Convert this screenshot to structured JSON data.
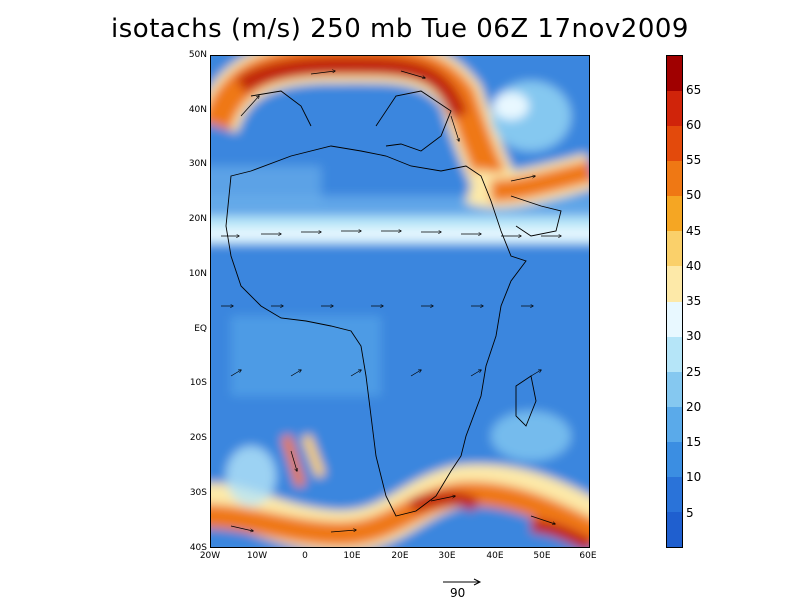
{
  "title": "isotachs (m/s) 250 mb Tue 06Z 17nov2009",
  "lat_labels": [
    "50N",
    "40N",
    "30N",
    "20N",
    "10N",
    "EQ",
    "10S",
    "20S",
    "30S",
    "40S"
  ],
  "lon_labels": [
    "20W",
    "10W",
    "0",
    "10E",
    "20E",
    "30E",
    "40E",
    "50E",
    "60E"
  ],
  "colorbar": {
    "labels": [
      "65",
      "60",
      "55",
      "50",
      "45",
      "40",
      "35",
      "30",
      "25",
      "20",
      "15",
      "10",
      "5"
    ],
    "colors": [
      "#a00000",
      "#d0240a",
      "#e34a0c",
      "#ef7814",
      "#f5a623",
      "#fad06a",
      "#fde9a8",
      "#e8f8ff",
      "#b5e5f8",
      "#85c8f0",
      "#5aaaea",
      "#3b8ee2",
      "#2a73d9",
      "#1f5fcf"
    ]
  },
  "reference_vector": {
    "label": "90"
  },
  "colors": {
    "background": "#3a86de",
    "coastline": "#000000"
  }
}
